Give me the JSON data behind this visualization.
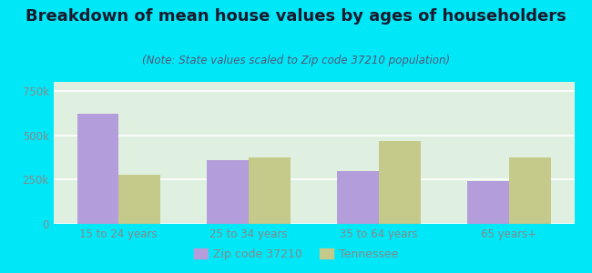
{
  "title": "Breakdown of mean house values by ages of householders",
  "subtitle": "(Note: State values scaled to Zip code 37210 population)",
  "categories": [
    "15 to 24 years",
    "25 to 34 years",
    "35 to 64 years",
    "65 years+"
  ],
  "zip_values": [
    620000,
    360000,
    295000,
    240000
  ],
  "tn_values": [
    275000,
    375000,
    465000,
    375000
  ],
  "zip_color": "#b39ddb",
  "tn_color": "#c5c98a",
  "background_outer": "#00e8f8",
  "background_inner": "#e8f5e9",
  "ylim": [
    0,
    800000
  ],
  "yticks": [
    0,
    250000,
    500000,
    750000
  ],
  "ytick_labels": [
    "0",
    "250k",
    "500k",
    "750k"
  ],
  "legend_zip": "Zip code 37210",
  "legend_tn": "Tennessee",
  "bar_width": 0.32,
  "title_fontsize": 13,
  "subtitle_fontsize": 8.5,
  "axis_fontsize": 8.5,
  "legend_fontsize": 9,
  "title_color": "#1a1a2e",
  "subtitle_color": "#555577",
  "tick_color": "#888888"
}
